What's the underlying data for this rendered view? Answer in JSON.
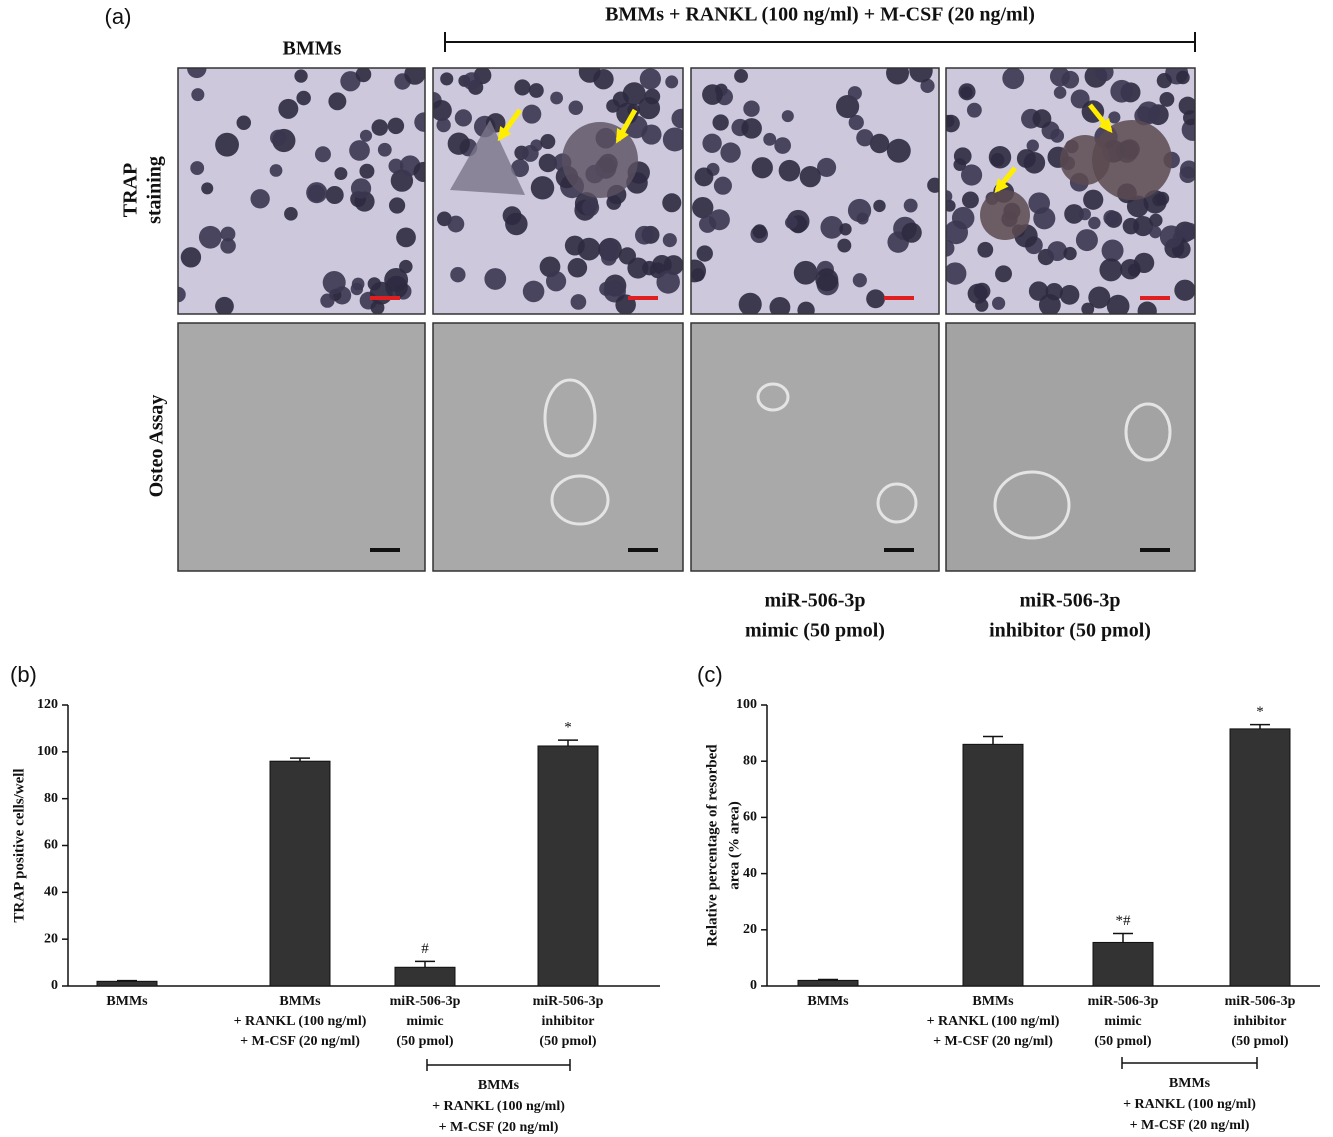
{
  "panel_a": {
    "label": "(a)",
    "group_header": "BMMs + RANKL (100 ng/ml) + M-CSF (20 ng/ml)",
    "column_headers": [
      "BMMs"
    ],
    "row_labels": [
      [
        "TRAP",
        "staining"
      ],
      [
        "Osteo Assay"
      ]
    ],
    "column_footers": [
      [
        "miR-506-3p",
        "mimic (50 pmol)"
      ],
      [
        "miR-506-3p",
        "inhibitor (50 pmol)"
      ]
    ]
  },
  "chart_data": [
    {
      "type": "bar",
      "panel_label": "(b)",
      "ylabel": [
        "TRAP positive cells/well"
      ],
      "categories": [
        [
          "BMMs"
        ],
        [
          "BMMs",
          "+ RANKL (100 ng/ml)",
          "+ M-CSF (20 ng/ml)"
        ],
        [
          "miR-506-3p",
          "mimic",
          "(50 pmol)"
        ],
        [
          "miR-506-3p",
          "inhibitor",
          "(50 pmol)"
        ]
      ],
      "values": [
        2,
        96,
        8,
        102.5
      ],
      "errors": [
        0.3,
        1.3,
        2.5,
        2.5
      ],
      "annotations": [
        null,
        null,
        "#",
        "*"
      ],
      "color": "#333333",
      "ylim": [
        0,
        120
      ],
      "yticks": [
        0,
        20,
        40,
        60,
        80,
        100,
        120
      ],
      "group_label": [
        "BMMs",
        "+ RANKL (100 ng/ml)",
        "+ M-CSF (20 ng/ml)"
      ]
    },
    {
      "type": "bar",
      "panel_label": "(c)",
      "ylabel": [
        "Relative percentage of resorbed",
        "area (% area)"
      ],
      "categories": [
        [
          "BMMs"
        ],
        [
          "BMMs",
          "+ RANKL (100 ng/ml)",
          "+ M-CSF (20 ng/ml)"
        ],
        [
          "miR-506-3p",
          "mimic",
          "(50 pmol)"
        ],
        [
          "miR-506-3p",
          "inhibitor",
          "(50 pmol)"
        ]
      ],
      "values": [
        2,
        86,
        15.5,
        91.5
      ],
      "errors": [
        0.3,
        2.8,
        3.2,
        1.5
      ],
      "annotations": [
        null,
        null,
        "*#",
        "*"
      ],
      "color": "#333333",
      "ylim": [
        0,
        100
      ],
      "yticks": [
        0,
        20,
        40,
        60,
        80,
        100
      ],
      "group_label": [
        "BMMs",
        "+ RANKL (100 ng/ml)",
        "+ M-CSF (20 ng/ml)"
      ]
    }
  ]
}
